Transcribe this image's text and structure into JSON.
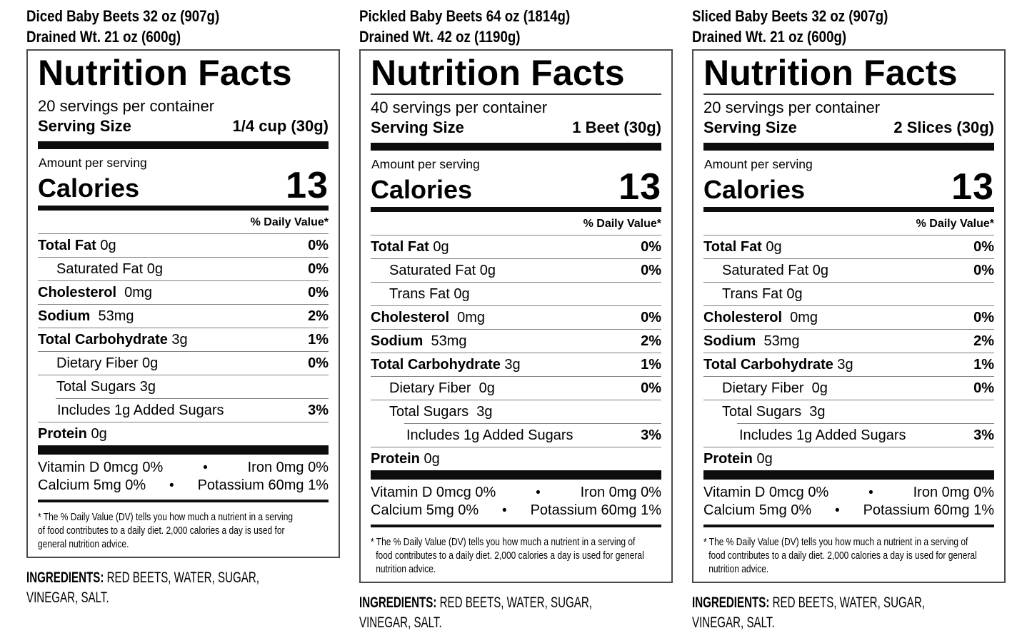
{
  "page": {
    "background": "#ffffff",
    "text_color": "#000000"
  },
  "panels": [
    {
      "product_line1": "Diced Baby Beets 32 oz (907g)",
      "product_line2": "Drained Wt. 21 oz (600g)",
      "title": "Nutrition Facts",
      "title_rule": false,
      "servings_per_container": "20 servings per container",
      "serving_size_label": "Serving Size",
      "serving_size_value": "1/4 cup (30g)",
      "amount_per_serving": "Amount per serving",
      "calories_label": "Calories",
      "calories_value": "13",
      "daily_value_header": "% Daily Value*",
      "nutrient_rows": [
        {
          "bold": "Total Fat",
          "rest": " 0g",
          "dv": "0%",
          "level": 0
        },
        {
          "bold": "",
          "rest": "Saturated Fat 0g",
          "dv": "0%",
          "level": 1
        },
        {
          "bold": "Cholesterol",
          "rest": "  0mg",
          "dv": "0%",
          "level": 0
        },
        {
          "bold": "Sodium",
          "rest": "  53mg",
          "dv": "2%",
          "level": 0
        },
        {
          "bold": "Total Carbohydrate",
          "rest": " 3g",
          "dv": "1%",
          "level": 0
        },
        {
          "bold": "",
          "rest": "Dietary Fiber 0g",
          "dv": "0%",
          "level": 1
        },
        {
          "bold": "",
          "rest": "Total Sugars 3g",
          "dv": "",
          "level": 1
        },
        {
          "bold": "",
          "rest": "Includes 1g Added Sugars",
          "dv": "3%",
          "level": 2
        },
        {
          "bold": "Protein",
          "rest": " 0g",
          "dv": "",
          "level": 0
        }
      ],
      "micronutrients": {
        "bullet": "•",
        "rows": [
          {
            "left": "Vitamin D 0mcg 0%",
            "right": "Iron 0mg 0%"
          },
          {
            "left": "Calcium 5mg 0%",
            "right": "Potassium 60mg 1%"
          }
        ]
      },
      "footnote_hanging_indent": false,
      "footnote_lines": [
        "* The % Daily Value (DV) tells you how much a nutrient in a serving",
        "of food contributes to a daily diet. 2,000 calories a day is used for",
        "general nutrition advice."
      ],
      "ingredients_label": "INGREDIENTS:",
      "ingredients_lines": [
        "RED BEETS, WATER, SUGAR,",
        "VINEGAR, SALT."
      ]
    },
    {
      "product_line1": "Pickled Baby Beets 64 oz (1814g)",
      "product_line2": "Drained Wt. 42 oz (1190g)",
      "title": "Nutrition Facts",
      "title_rule": true,
      "servings_per_container": "40 servings per container",
      "serving_size_label": "Serving Size",
      "serving_size_value": "1 Beet (30g)",
      "amount_per_serving": "Amount per serving",
      "calories_label": "Calories",
      "calories_value": "13",
      "daily_value_header": "% Daily Value*",
      "nutrient_rows": [
        {
          "bold": "Total Fat",
          "rest": " 0g",
          "dv": "0%",
          "level": 0
        },
        {
          "bold": "",
          "rest": "Saturated Fat 0g",
          "dv": "0%",
          "level": 1
        },
        {
          "bold": "",
          "rest": "Trans Fat 0g",
          "dv": "",
          "level": 1
        },
        {
          "bold": "Cholesterol",
          "rest": "  0mg",
          "dv": "0%",
          "level": 0
        },
        {
          "bold": "Sodium",
          "rest": "  53mg",
          "dv": "2%",
          "level": 0
        },
        {
          "bold": "Total Carbohydrate",
          "rest": " 3g",
          "dv": "1%",
          "level": 0
        },
        {
          "bold": "",
          "rest": "Dietary Fiber  0g",
          "dv": "0%",
          "level": 1
        },
        {
          "bold": "",
          "rest": "Total Sugars  3g",
          "dv": "",
          "level": 1
        },
        {
          "bold": "",
          "rest": "Includes 1g Added Sugars",
          "dv": "3%",
          "level": 2
        },
        {
          "bold": "Protein",
          "rest": " 0g",
          "dv": "",
          "level": 0
        }
      ],
      "micronutrients": {
        "bullet": "•",
        "rows": [
          {
            "left": "Vitamin D 0mcg 0%",
            "right": "Iron 0mg 0%"
          },
          {
            "left": "Calcium 5mg 0%",
            "right": "Potassium 60mg 1%"
          }
        ]
      },
      "footnote_hanging_indent": true,
      "footnote_lines": [
        "* The % Daily Value (DV) tells you how much a nutrient in a serving of",
        "food contributes to a daily diet. 2,000 calories a day is used for general",
        "nutrition advice."
      ],
      "ingredients_label": "INGREDIENTS:",
      "ingredients_lines": [
        "RED BEETS, WATER, SUGAR,",
        "VINEGAR, SALT."
      ]
    },
    {
      "product_line1": "Sliced Baby Beets 32 oz (907g)",
      "product_line2": "Drained Wt. 21 oz (600g)",
      "title": "Nutrition Facts",
      "title_rule": true,
      "servings_per_container": "20 servings per container",
      "serving_size_label": "Serving Size",
      "serving_size_value": "2 Slices (30g)",
      "amount_per_serving": "Amount per serving",
      "calories_label": "Calories",
      "calories_value": "13",
      "daily_value_header": "% Daily Value*",
      "nutrient_rows": [
        {
          "bold": "Total Fat",
          "rest": " 0g",
          "dv": "0%",
          "level": 0
        },
        {
          "bold": "",
          "rest": "Saturated Fat 0g",
          "dv": "0%",
          "level": 1
        },
        {
          "bold": "",
          "rest": "Trans Fat 0g",
          "dv": "",
          "level": 1
        },
        {
          "bold": "Cholesterol",
          "rest": "  0mg",
          "dv": "0%",
          "level": 0
        },
        {
          "bold": "Sodium",
          "rest": "  53mg",
          "dv": "2%",
          "level": 0
        },
        {
          "bold": "Total Carbohydrate",
          "rest": " 3g",
          "dv": "1%",
          "level": 0
        },
        {
          "bold": "",
          "rest": "Dietary Fiber  0g",
          "dv": "0%",
          "level": 1
        },
        {
          "bold": "",
          "rest": "Total Sugars  3g",
          "dv": "",
          "level": 1
        },
        {
          "bold": "",
          "rest": "Includes 1g Added Sugars",
          "dv": "3%",
          "level": 2
        },
        {
          "bold": "Protein",
          "rest": " 0g",
          "dv": "",
          "level": 0
        }
      ],
      "micronutrients": {
        "bullet": "•",
        "rows": [
          {
            "left": "Vitamin D 0mcg 0%",
            "right": "Iron 0mg 0%"
          },
          {
            "left": "Calcium 5mg 0%",
            "right": "Potassium 60mg 1%"
          }
        ]
      },
      "footnote_hanging_indent": true,
      "footnote_lines": [
        "* The % Daily Value (DV) tells you how much a nutrient in a serving of",
        "food contributes to a daily diet. 2,000 calories a day is used for general",
        "nutrition advice."
      ],
      "ingredients_label": "INGREDIENTS:",
      "ingredients_lines": [
        "RED BEETS, WATER, SUGAR,",
        "VINEGAR, SALT."
      ]
    }
  ]
}
